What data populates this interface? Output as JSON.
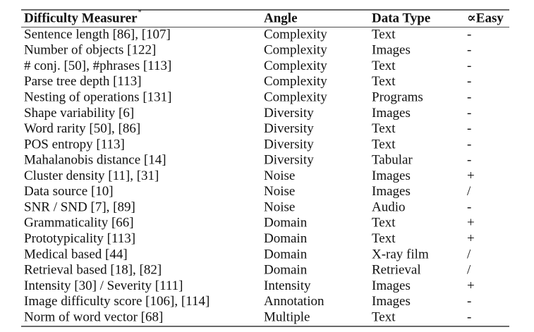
{
  "table": {
    "header": [
      "Difficulty Measurer",
      "Angle",
      "Data Type",
      "∝Easy"
    ],
    "header_note": "*",
    "rows": [
      [
        "Sentence length [86], [107]",
        "Complexity",
        "Text",
        "-"
      ],
      [
        "Number of objects [122]",
        "Complexity",
        "Images",
        "-"
      ],
      [
        "# conj. [50], #phrases [113]",
        "Complexity",
        "Text",
        "-"
      ],
      [
        "Parse tree depth [113]",
        "Complexity",
        "Text",
        "-"
      ],
      [
        "Nesting of operations [131]",
        "Complexity",
        "Programs",
        "-"
      ],
      [
        "Shape variability [6]",
        "Diversity",
        "Images",
        "-"
      ],
      [
        "Word rarity [50], [86]",
        "Diversity",
        "Text",
        "-"
      ],
      [
        "POS entropy [113]",
        "Diversity",
        "Text",
        "-"
      ],
      [
        "Mahalanobis distance [14]",
        "Diversity",
        "Tabular",
        "-"
      ],
      [
        "Cluster density [11], [31]",
        "Noise",
        "Images",
        "+"
      ],
      [
        "Data source [10]",
        "Noise",
        "Images",
        "/"
      ],
      [
        "SNR / SND  [7], [89]",
        "Noise",
        "Audio",
        "-"
      ],
      [
        "Grammaticality [66]",
        "Domain",
        "Text",
        "+"
      ],
      [
        "Prototypicality [113]",
        "Domain",
        "Text",
        "+"
      ],
      [
        "Medical based [44]",
        "Domain",
        "X-ray film",
        "/"
      ],
      [
        "Retrieval based [18], [82]",
        "Domain",
        "Retrieval",
        "/"
      ],
      [
        "Intensity [30] / Severity [111]",
        "Intensity",
        "Images",
        "+"
      ],
      [
        "Image difficulty score [106], [114]",
        "Annotation",
        "Images",
        "-"
      ],
      [
        "Norm of word vector [68]",
        "Multiple",
        "Text",
        "-"
      ]
    ]
  }
}
